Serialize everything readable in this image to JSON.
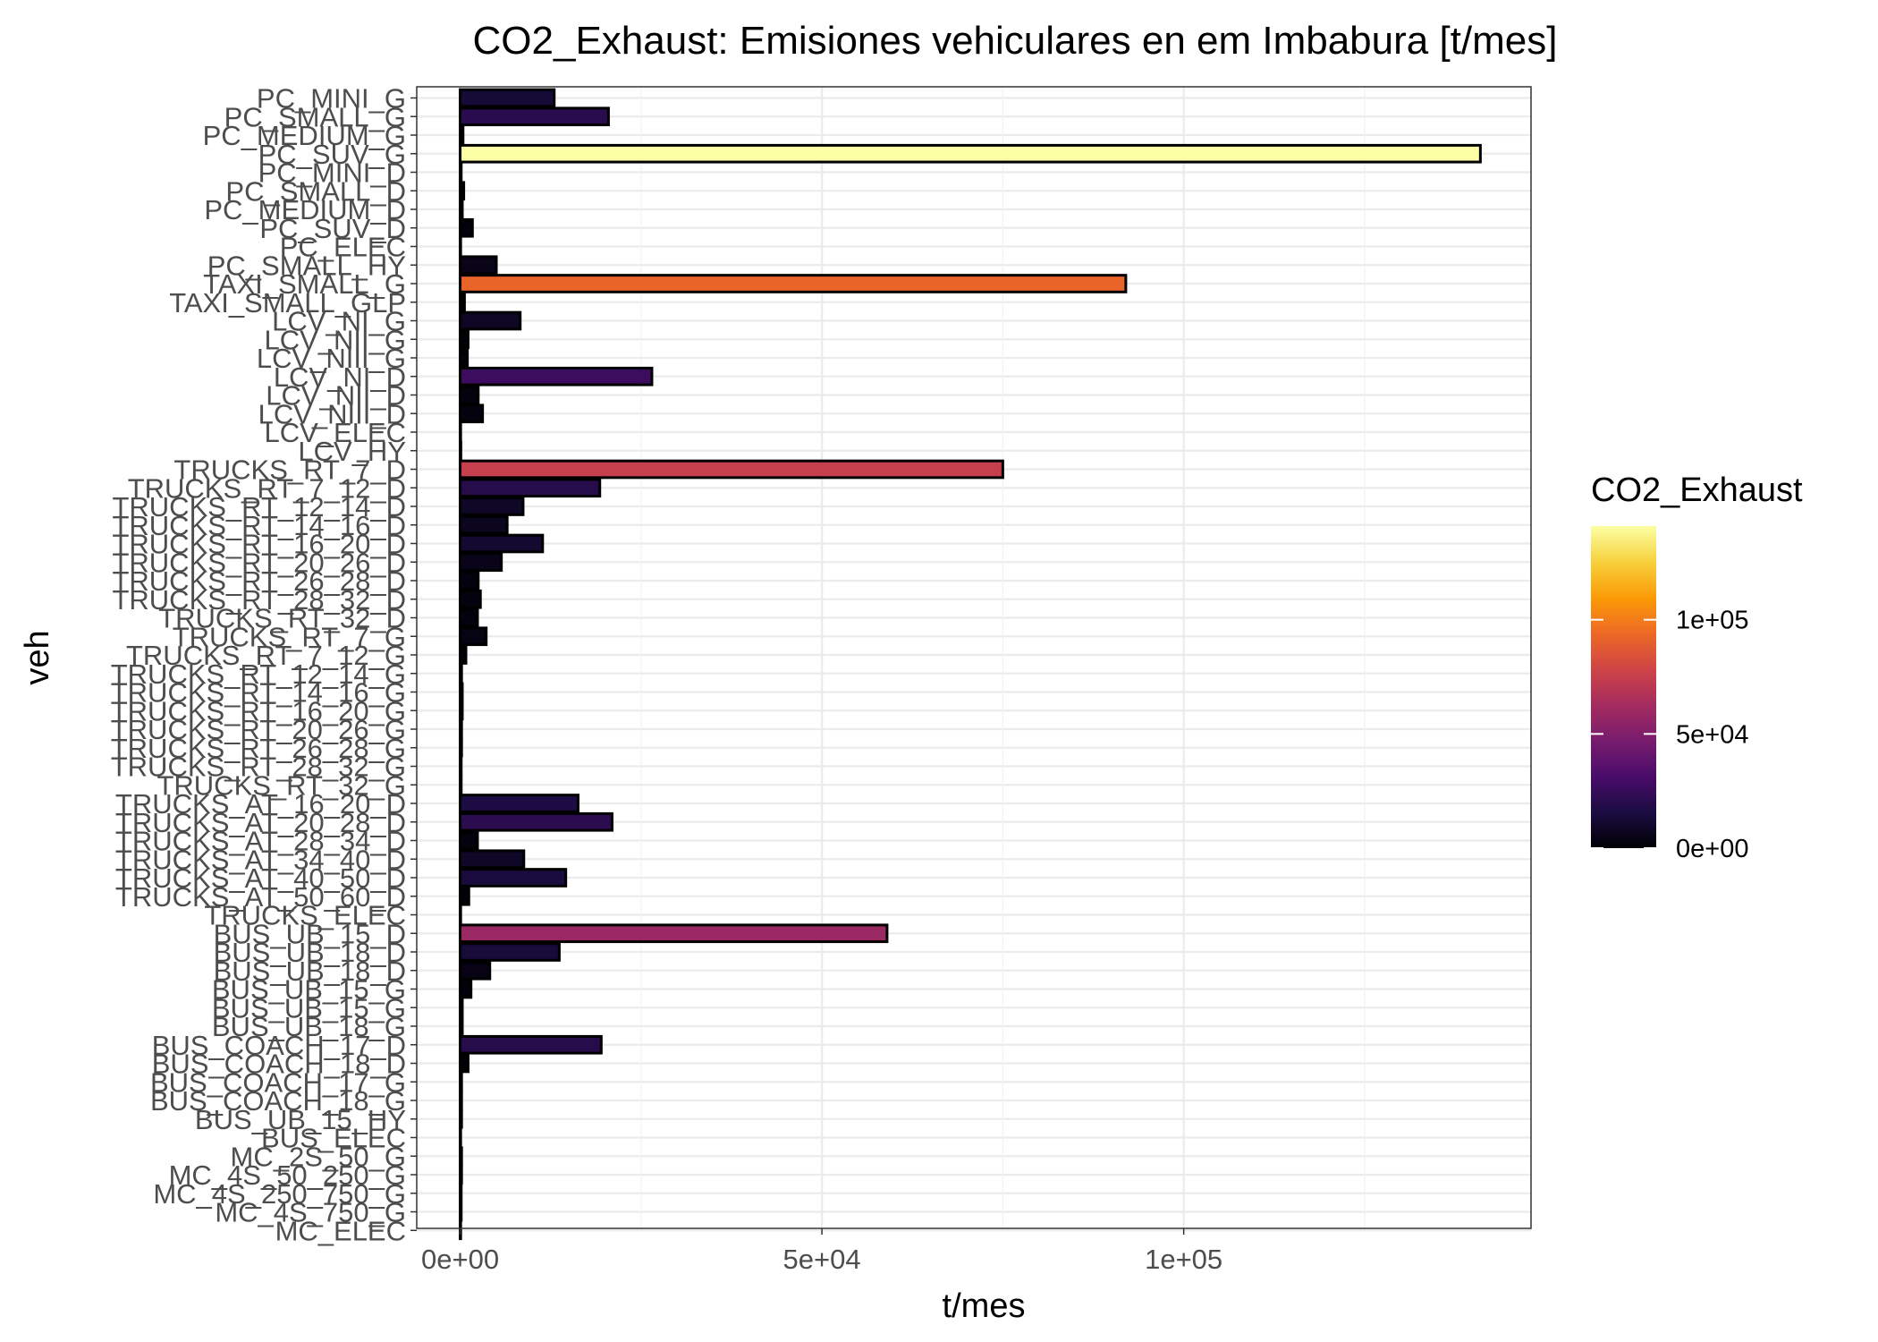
{
  "chart_data": {
    "type": "bar",
    "orientation": "horizontal",
    "title": "CO2_Exhaust: Emisiones vehiculares en  em Imbabura [t/mes]",
    "xlabel": "t/mes",
    "ylabel": "veh",
    "xlim": [
      -6000,
      148000
    ],
    "x_ticks": [
      0,
      50000,
      100000
    ],
    "x_tick_labels": [
      "0e+00",
      "5e+04",
      "1e+05"
    ],
    "grid": true,
    "categories": [
      "PC_MINI_G",
      "PC_SMALL_G",
      "PC_MEDIUM_G",
      "PC_SUV_G",
      "PC_MINI_D",
      "PC_SMALL_D",
      "PC_MEDIUM_D",
      "PC_SUV_D",
      "PC_ELEC",
      "PC_SMALL_HY",
      "TAXI_SMALL_G",
      "TAXI_SMALL_GLP",
      "LCV_NI_G",
      "LCV_NII_G",
      "LCV_NIII_G",
      "LCV_NI_D",
      "LCV_NII_D",
      "LCV_NIII_D",
      "LCV_ELEC",
      "LCV_HY",
      "TRUCKS_RT_7_D",
      "TRUCKS_RT_7_12_D",
      "TRUCKS_RT_12_14_D",
      "TRUCKS_RT_14_16_D",
      "TRUCKS_RT_16_20_D",
      "TRUCKS_RT_20_26_D",
      "TRUCKS_RT_26_28_D",
      "TRUCKS_RT_28_32_D",
      "TRUCKS_RT_32_D",
      "TRUCKS_RT_7_G",
      "TRUCKS_RT_7_12_G",
      "TRUCKS_RT_12_14_G",
      "TRUCKS_RT_14_16_G",
      "TRUCKS_RT_16_20_G",
      "TRUCKS_RT_20_26_G",
      "TRUCKS_RT_26_28_G",
      "TRUCKS_RT_28_32_G",
      "TRUCKS_RT_32_G",
      "TRUCKS_AT_16_20_D",
      "TRUCKS_AT_20_28_D",
      "TRUCKS_AT_28_34_D",
      "TRUCKS_AT_34_40_D",
      "TRUCKS_AT_40_50_D",
      "TRUCKS_AT_50_60_D",
      "TRUCKS_ELEC",
      "BUS_UB_15_D",
      "BUS_UB_18_D",
      "BUS_UB_18_D",
      "BUS_UB_15_G",
      "BUS_UB_15_G",
      "BUS_UB_18_G",
      "BUS_COACH_17_D",
      "BUS_COACH_18_D",
      "BUS_COACH_17_G",
      "BUS_COACH_18_G",
      "BUS_UB_15_HY",
      "BUS_ELEC",
      "MC_2S_50_G",
      "MC_4S_50_250_G",
      "MC_4S_250_750_G",
      "MC_4S_750_G",
      "MC_ELEC"
    ],
    "values": [
      13000,
      20500,
      400,
      141000,
      150,
      500,
      300,
      1700,
      0,
      5000,
      92000,
      600,
      8300,
      1100,
      1000,
      26500,
      2500,
      3100,
      0,
      100,
      75000,
      19300,
      8700,
      6500,
      11400,
      5700,
      2500,
      2800,
      2400,
      3600,
      800,
      200,
      300,
      300,
      200,
      200,
      150,
      150,
      16300,
      21000,
      2400,
      8800,
      14600,
      1200,
      0,
      59000,
      13700,
      4100,
      1500,
      300,
      300,
      19500,
      1100,
      200,
      200,
      200,
      0,
      200,
      200,
      150,
      150,
      0
    ],
    "legend": {
      "title": "CO2_Exhaust",
      "position": "right",
      "type": "colorbar",
      "palette": [
        "#000004",
        "#1b0c41",
        "#4a0c6b",
        "#781c6d",
        "#a52c60",
        "#cf4446",
        "#ed6925",
        "#fb9b06",
        "#f7d13d",
        "#fcffa4"
      ],
      "range": [
        0,
        141000
      ],
      "ticks": [
        0,
        50000,
        100000
      ],
      "tick_labels": [
        "0e+00",
        "5e+04",
        "1e+05"
      ]
    }
  }
}
